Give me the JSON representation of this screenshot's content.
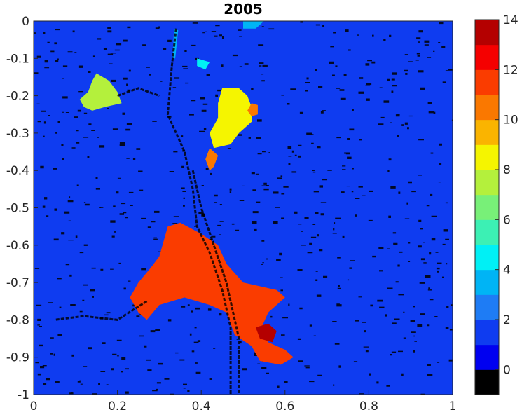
{
  "chart_data": {
    "type": "heatmap",
    "title": "2005",
    "xlabel": "",
    "ylabel": "",
    "xlim": [
      0,
      1
    ],
    "ylim": [
      -1,
      0
    ],
    "x_ticks": [
      0,
      0.2,
      0.4,
      0.6,
      0.8,
      1
    ],
    "x_tick_labels": [
      "0",
      "0.2",
      "0.4",
      "0.6",
      "0.8",
      "1"
    ],
    "y_ticks": [
      0,
      -0.1,
      -0.2,
      -0.3,
      -0.4,
      -0.5,
      -0.6,
      -0.7,
      -0.8,
      -0.9,
      -1
    ],
    "y_tick_labels": [
      "0",
      "-0.1",
      "-0.2",
      "-0.3",
      "-0.4",
      "-0.5",
      "-0.6",
      "-0.7",
      "-0.8",
      "-0.9",
      "-1"
    ],
    "grid": false,
    "background_value": 2,
    "colorbar": {
      "range": [
        -1,
        14
      ],
      "ticks": [
        0,
        2,
        4,
        6,
        8,
        10,
        12,
        14
      ],
      "tick_labels": [
        "0",
        "2",
        "4",
        "6",
        "8",
        "10",
        "12",
        "14"
      ],
      "levels": [
        {
          "value": -0.5,
          "color": "#000000"
        },
        {
          "value": 0.5,
          "color": "#0000f0"
        },
        {
          "value": 1.5,
          "color": "#0f3cf0"
        },
        {
          "value": 2.5,
          "color": "#1e7cf5"
        },
        {
          "value": 3.5,
          "color": "#00b4f5"
        },
        {
          "value": 4.5,
          "color": "#00f0f5"
        },
        {
          "value": 5.5,
          "color": "#3cf0b4"
        },
        {
          "value": 6.5,
          "color": "#78f078"
        },
        {
          "value": 7.5,
          "color": "#b4f03c"
        },
        {
          "value": 8.5,
          "color": "#f5f500"
        },
        {
          "value": 9.5,
          "color": "#fab400"
        },
        {
          "value": 10.5,
          "color": "#fa7800"
        },
        {
          "value": 11.5,
          "color": "#fa3c00"
        },
        {
          "value": 12.5,
          "color": "#f50000"
        },
        {
          "value": 13.5,
          "color": "#b40000"
        }
      ]
    },
    "regions": [
      {
        "value": 8,
        "color": "#b4f03c",
        "points": [
          [
            0.15,
            -0.14
          ],
          [
            0.18,
            -0.16
          ],
          [
            0.2,
            -0.19
          ],
          [
            0.21,
            -0.22
          ],
          [
            0.17,
            -0.23
          ],
          [
            0.14,
            -0.24
          ],
          [
            0.12,
            -0.23
          ],
          [
            0.11,
            -0.21
          ],
          [
            0.13,
            -0.19
          ],
          [
            0.14,
            -0.16
          ]
        ]
      },
      {
        "value": 9,
        "color": "#f5f500",
        "points": [
          [
            0.45,
            -0.18
          ],
          [
            0.49,
            -0.18
          ],
          [
            0.51,
            -0.2
          ],
          [
            0.52,
            -0.23
          ],
          [
            0.52,
            -0.27
          ],
          [
            0.49,
            -0.3
          ],
          [
            0.47,
            -0.33
          ],
          [
            0.43,
            -0.34
          ],
          [
            0.42,
            -0.3
          ],
          [
            0.44,
            -0.26
          ],
          [
            0.44,
            -0.22
          ]
        ]
      },
      {
        "value": 10,
        "color": "#fa7800",
        "points": [
          [
            0.42,
            -0.34
          ],
          [
            0.44,
            -0.36
          ],
          [
            0.43,
            -0.39
          ],
          [
            0.42,
            -0.4
          ],
          [
            0.41,
            -0.37
          ]
        ]
      },
      {
        "value": 10,
        "color": "#fa7800",
        "points": [
          [
            0.52,
            -0.22
          ],
          [
            0.535,
            -0.225
          ],
          [
            0.535,
            -0.25
          ],
          [
            0.52,
            -0.255
          ],
          [
            0.51,
            -0.24
          ]
        ]
      },
      {
        "value": 12,
        "color": "#fa3c00",
        "points": [
          [
            0.32,
            -0.55
          ],
          [
            0.35,
            -0.54
          ],
          [
            0.4,
            -0.57
          ],
          [
            0.44,
            -0.6
          ],
          [
            0.46,
            -0.65
          ],
          [
            0.5,
            -0.7
          ],
          [
            0.58,
            -0.72
          ],
          [
            0.6,
            -0.74
          ],
          [
            0.56,
            -0.78
          ],
          [
            0.54,
            -0.83
          ],
          [
            0.56,
            -0.86
          ],
          [
            0.6,
            -0.88
          ],
          [
            0.62,
            -0.9
          ],
          [
            0.59,
            -0.92
          ],
          [
            0.54,
            -0.91
          ],
          [
            0.52,
            -0.87
          ],
          [
            0.48,
            -0.84
          ],
          [
            0.46,
            -0.78
          ],
          [
            0.42,
            -0.76
          ],
          [
            0.36,
            -0.74
          ],
          [
            0.3,
            -0.76
          ],
          [
            0.27,
            -0.8
          ],
          [
            0.25,
            -0.78
          ],
          [
            0.23,
            -0.74
          ],
          [
            0.25,
            -0.7
          ],
          [
            0.28,
            -0.66
          ],
          [
            0.3,
            -0.63
          ],
          [
            0.31,
            -0.59
          ]
        ]
      },
      {
        "value": 13,
        "color": "#b40000",
        "points": [
          [
            0.53,
            -0.82
          ],
          [
            0.56,
            -0.81
          ],
          [
            0.58,
            -0.83
          ],
          [
            0.57,
            -0.86
          ],
          [
            0.54,
            -0.85
          ]
        ]
      },
      {
        "value": 3,
        "color": "#00b4f5",
        "points": [
          [
            0.335,
            -0.02
          ],
          [
            0.345,
            -0.025
          ],
          [
            0.338,
            -0.1
          ],
          [
            0.332,
            -0.1
          ]
        ]
      },
      {
        "value": 4,
        "color": "#00f0f5",
        "points": [
          [
            0.39,
            -0.1
          ],
          [
            0.42,
            -0.11
          ],
          [
            0.41,
            -0.13
          ],
          [
            0.39,
            -0.12
          ]
        ]
      },
      {
        "value": 3,
        "color": "#00b4f5",
        "points": [
          [
            0.5,
            -0.0
          ],
          [
            0.55,
            -0.0
          ],
          [
            0.53,
            -0.02
          ],
          [
            0.5,
            -0.02
          ]
        ]
      }
    ]
  }
}
